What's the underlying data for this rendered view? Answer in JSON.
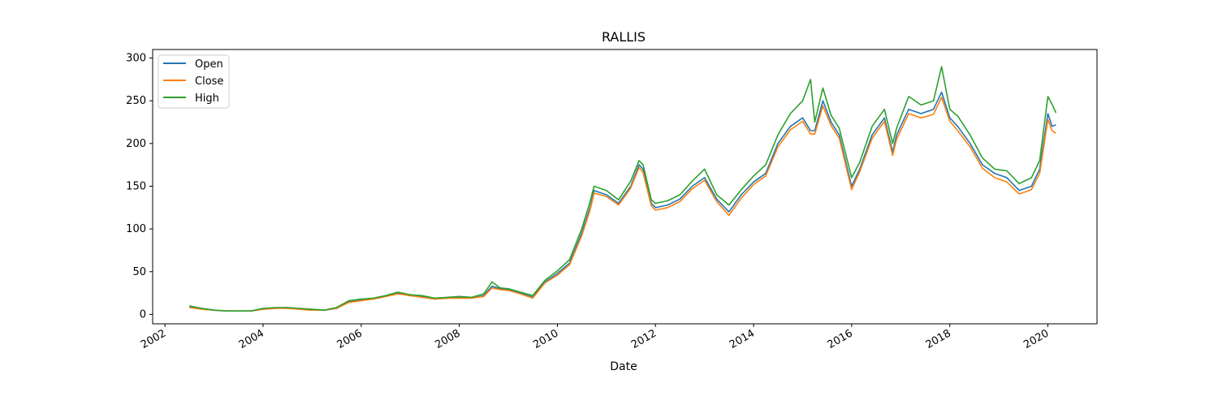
{
  "chart_data": {
    "type": "line",
    "title": "RALLIS",
    "xlabel": "Date",
    "ylabel": "",
    "x_ticks": [
      "2002",
      "2004",
      "2006",
      "2008",
      "2010",
      "2012",
      "2014",
      "2016",
      "2018",
      "2020"
    ],
    "y_ticks": [
      0,
      50,
      100,
      150,
      200,
      250,
      300
    ],
    "xlim": [
      "2001-10-01",
      "2021-01-01"
    ],
    "ylim": [
      -11,
      310
    ],
    "grid": false,
    "legend_position": "upper-left",
    "x": [
      "2002-07-01",
      "2002-10-01",
      "2003-01-01",
      "2003-04-01",
      "2003-07-01",
      "2003-10-01",
      "2004-01-01",
      "2004-04-01",
      "2004-07-01",
      "2004-10-01",
      "2005-01-01",
      "2005-04-01",
      "2005-07-01",
      "2005-10-01",
      "2006-01-01",
      "2006-04-01",
      "2006-07-01",
      "2006-10-01",
      "2007-01-01",
      "2007-04-01",
      "2007-07-01",
      "2007-10-01",
      "2008-01-01",
      "2008-04-01",
      "2008-07-01",
      "2008-09-01",
      "2008-11-01",
      "2009-01-01",
      "2009-04-01",
      "2009-07-01",
      "2009-10-01",
      "2010-01-01",
      "2010-04-01",
      "2010-07-01",
      "2010-09-01",
      "2010-10-01",
      "2011-01-01",
      "2011-04-01",
      "2011-07-01",
      "2011-09-01",
      "2011-10-01",
      "2011-12-01",
      "2012-01-01",
      "2012-04-01",
      "2012-07-01",
      "2012-10-01",
      "2013-01-01",
      "2013-04-01",
      "2013-07-01",
      "2013-10-01",
      "2014-01-01",
      "2014-04-01",
      "2014-07-01",
      "2014-10-01",
      "2015-01-01",
      "2015-03-01",
      "2015-04-01",
      "2015-06-01",
      "2015-08-01",
      "2015-10-01",
      "2016-01-01",
      "2016-03-01",
      "2016-06-01",
      "2016-09-01",
      "2016-11-01",
      "2016-12-01",
      "2017-03-01",
      "2017-06-01",
      "2017-09-01",
      "2017-11-01",
      "2018-01-01",
      "2018-03-01",
      "2018-06-01",
      "2018-09-01",
      "2018-12-01",
      "2019-03-01",
      "2019-06-01",
      "2019-09-01",
      "2019-11-01",
      "2020-01-01",
      "2020-02-01",
      "2020-03-01"
    ],
    "series": [
      {
        "name": "Open",
        "color": "#1f77b4",
        "values": [
          9,
          7,
          5,
          4,
          4,
          4,
          6,
          7,
          8,
          6,
          5,
          5,
          7,
          15,
          17,
          18,
          21,
          25,
          22,
          21,
          18,
          19,
          20,
          19,
          22,
          33,
          30,
          29,
          25,
          20,
          38,
          48,
          60,
          95,
          125,
          145,
          140,
          130,
          150,
          175,
          170,
          130,
          125,
          128,
          135,
          150,
          160,
          135,
          120,
          140,
          155,
          165,
          200,
          220,
          230,
          215,
          215,
          250,
          225,
          210,
          150,
          170,
          210,
          230,
          190,
          210,
          240,
          235,
          240,
          260,
          230,
          220,
          200,
          175,
          165,
          160,
          145,
          150,
          170,
          235,
          220,
          222
        ]
      },
      {
        "name": "Close",
        "color": "#ff7f0e",
        "values": [
          8,
          6,
          5,
          4,
          4,
          4,
          6,
          7,
          7,
          6,
          5,
          5,
          7,
          14,
          16,
          18,
          21,
          24,
          22,
          20,
          18,
          19,
          19,
          19,
          21,
          31,
          29,
          28,
          24,
          19,
          37,
          46,
          58,
          92,
          122,
          142,
          138,
          128,
          148,
          172,
          166,
          127,
          122,
          125,
          132,
          147,
          157,
          132,
          116,
          136,
          152,
          162,
          196,
          216,
          226,
          211,
          211,
          244,
          221,
          206,
          146,
          167,
          206,
          226,
          186,
          205,
          235,
          230,
          234,
          254,
          226,
          215,
          196,
          171,
          160,
          155,
          141,
          146,
          165,
          228,
          215,
          212
        ]
      },
      {
        "name": "High",
        "color": "#2ca02c",
        "values": [
          10,
          7,
          5,
          4,
          4,
          4,
          7,
          8,
          8,
          7,
          6,
          5,
          8,
          16,
          18,
          19,
          22,
          26,
          23,
          22,
          19,
          20,
          21,
          20,
          24,
          38,
          31,
          30,
          26,
          22,
          40,
          51,
          64,
          100,
          132,
          150,
          145,
          134,
          156,
          180,
          175,
          134,
          130,
          133,
          140,
          156,
          170,
          140,
          128,
          146,
          162,
          175,
          210,
          235,
          250,
          275,
          225,
          265,
          233,
          218,
          160,
          178,
          220,
          240,
          200,
          218,
          255,
          245,
          250,
          290,
          240,
          232,
          210,
          183,
          170,
          168,
          153,
          160,
          180,
          255,
          246,
          236
        ]
      }
    ]
  }
}
